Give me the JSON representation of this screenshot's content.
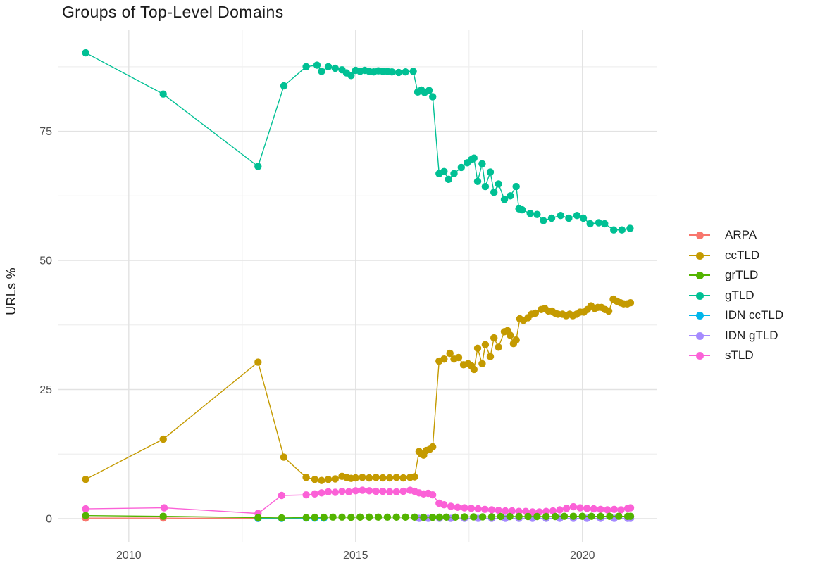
{
  "title": "Groups of Top-Level Domains",
  "axes": {
    "y_label": "URLs %",
    "y_ticks": [
      0,
      25,
      50,
      75
    ],
    "y_minor_ticks": [
      12.5,
      37.5,
      62.5,
      87.5
    ],
    "x_ticks": [
      2010,
      2015,
      2020
    ],
    "x_minor_ticks": [
      2012.5,
      2017.5
    ],
    "grid_major_color": "#e2e2e2",
    "grid_minor_color": "#efefef"
  },
  "legend_order": [
    "ARPA",
    "ccTLD",
    "grTLD",
    "gTLD",
    "IDN ccTLD",
    "IDN gTLD",
    "sTLD"
  ],
  "chart_data": {
    "type": "line",
    "title": "Groups of Top-Level Domains",
    "xlabel": "",
    "ylabel": "URLs %",
    "xlim": [
      2008.45,
      2021.65
    ],
    "ylim": [
      -4.5,
      94.7
    ],
    "grid": true,
    "legend_position": "right",
    "series": [
      {
        "name": "ARPA",
        "color": "#F8766D",
        "points": [
          [
            2009.05,
            0.1
          ],
          [
            2010.76,
            0.1
          ],
          [
            2012.85,
            0.05
          ]
        ]
      },
      {
        "name": "IDN ccTLD",
        "color": "#00B6EB",
        "points": [
          [
            2012.85,
            0.05
          ],
          [
            2013.37,
            0.05
          ],
          [
            2013.91,
            0.1
          ],
          [
            2014.1,
            0.1
          ],
          [
            2014.3,
            0.1
          ]
        ]
      },
      {
        "name": "IDN gTLD",
        "color": "#A58AFF",
        "points": [
          [
            2016.4,
            0.05
          ],
          [
            2016.6,
            0.05
          ],
          [
            2016.85,
            0.05
          ],
          [
            2017.1,
            0.05
          ],
          [
            2017.4,
            0.05
          ],
          [
            2017.7,
            0.05
          ],
          [
            2018.0,
            0.05
          ],
          [
            2018.3,
            0.05
          ],
          [
            2018.6,
            0.05
          ],
          [
            2018.9,
            0.05
          ],
          [
            2019.2,
            0.05
          ],
          [
            2019.5,
            0.05
          ],
          [
            2019.8,
            0.05
          ],
          [
            2020.1,
            0.05
          ],
          [
            2020.4,
            0.05
          ],
          [
            2020.7,
            0.05
          ],
          [
            2021.0,
            0.05
          ],
          [
            2021.06,
            0.05
          ]
        ]
      },
      {
        "name": "ccTLD",
        "color": "#C49A00",
        "points": [
          [
            2009.05,
            7.6
          ],
          [
            2010.76,
            15.4
          ],
          [
            2012.85,
            30.3
          ],
          [
            2013.42,
            11.9
          ],
          [
            2013.91,
            8.0
          ],
          [
            2014.1,
            7.6
          ],
          [
            2014.25,
            7.4
          ],
          [
            2014.4,
            7.6
          ],
          [
            2014.55,
            7.7
          ],
          [
            2014.7,
            8.2
          ],
          [
            2014.8,
            8.0
          ],
          [
            2014.9,
            7.8
          ],
          [
            2015.0,
            7.9
          ],
          [
            2015.15,
            8.0
          ],
          [
            2015.3,
            7.9
          ],
          [
            2015.45,
            8.0
          ],
          [
            2015.6,
            7.9
          ],
          [
            2015.75,
            7.9
          ],
          [
            2015.9,
            8.0
          ],
          [
            2016.05,
            7.9
          ],
          [
            2016.2,
            8.0
          ],
          [
            2016.3,
            8.1
          ],
          [
            2016.4,
            13.0
          ],
          [
            2016.45,
            12.5
          ],
          [
            2016.5,
            12.3
          ],
          [
            2016.56,
            13.2
          ],
          [
            2016.63,
            13.4
          ],
          [
            2016.7,
            13.9
          ],
          [
            2016.84,
            30.5
          ],
          [
            2016.95,
            30.9
          ],
          [
            2017.08,
            32.0
          ],
          [
            2017.17,
            30.9
          ],
          [
            2017.27,
            31.2
          ],
          [
            2017.38,
            29.8
          ],
          [
            2017.48,
            30.0
          ],
          [
            2017.55,
            29.6
          ],
          [
            2017.61,
            28.9
          ],
          [
            2017.69,
            33.0
          ],
          [
            2017.79,
            30.0
          ],
          [
            2017.86,
            33.7
          ],
          [
            2017.97,
            31.4
          ],
          [
            2018.05,
            35.0
          ],
          [
            2018.15,
            33.2
          ],
          [
            2018.28,
            36.2
          ],
          [
            2018.35,
            36.4
          ],
          [
            2018.41,
            35.5
          ],
          [
            2018.48,
            33.9
          ],
          [
            2018.54,
            34.6
          ],
          [
            2018.62,
            38.7
          ],
          [
            2018.7,
            38.4
          ],
          [
            2018.8,
            38.9
          ],
          [
            2018.88,
            39.6
          ],
          [
            2018.96,
            39.8
          ],
          [
            2019.09,
            40.5
          ],
          [
            2019.17,
            40.7
          ],
          [
            2019.25,
            40.2
          ],
          [
            2019.33,
            40.2
          ],
          [
            2019.4,
            39.8
          ],
          [
            2019.46,
            39.6
          ],
          [
            2019.56,
            39.6
          ],
          [
            2019.64,
            39.3
          ],
          [
            2019.72,
            39.6
          ],
          [
            2019.79,
            39.3
          ],
          [
            2019.87,
            39.6
          ],
          [
            2019.95,
            40.0
          ],
          [
            2020.03,
            40.0
          ],
          [
            2020.11,
            40.5
          ],
          [
            2020.19,
            41.2
          ],
          [
            2020.27,
            40.7
          ],
          [
            2020.34,
            40.9
          ],
          [
            2020.42,
            40.9
          ],
          [
            2020.5,
            40.5
          ],
          [
            2020.58,
            40.2
          ],
          [
            2020.68,
            42.5
          ],
          [
            2020.76,
            42.1
          ],
          [
            2020.84,
            41.8
          ],
          [
            2020.91,
            41.6
          ],
          [
            2020.99,
            41.6
          ],
          [
            2021.06,
            41.8
          ]
        ]
      },
      {
        "name": "sTLD",
        "color": "#FB61D7",
        "points": [
          [
            2009.05,
            1.9
          ],
          [
            2010.78,
            2.1
          ],
          [
            2012.85,
            1.0
          ],
          [
            2013.37,
            4.5
          ],
          [
            2013.91,
            4.6
          ],
          [
            2014.1,
            4.8
          ],
          [
            2014.25,
            5.0
          ],
          [
            2014.4,
            5.2
          ],
          [
            2014.55,
            5.1
          ],
          [
            2014.7,
            5.3
          ],
          [
            2014.85,
            5.2
          ],
          [
            2015.0,
            5.4
          ],
          [
            2015.15,
            5.5
          ],
          [
            2015.3,
            5.4
          ],
          [
            2015.45,
            5.3
          ],
          [
            2015.6,
            5.3
          ],
          [
            2015.75,
            5.2
          ],
          [
            2015.9,
            5.2
          ],
          [
            2016.05,
            5.3
          ],
          [
            2016.2,
            5.5
          ],
          [
            2016.3,
            5.3
          ],
          [
            2016.4,
            5.0
          ],
          [
            2016.5,
            4.8
          ],
          [
            2016.6,
            4.9
          ],
          [
            2016.7,
            4.6
          ],
          [
            2016.84,
            3.0
          ],
          [
            2016.95,
            2.7
          ],
          [
            2017.1,
            2.4
          ],
          [
            2017.25,
            2.2
          ],
          [
            2017.4,
            2.1
          ],
          [
            2017.55,
            2.0
          ],
          [
            2017.7,
            1.9
          ],
          [
            2017.85,
            1.8
          ],
          [
            2018.0,
            1.7
          ],
          [
            2018.15,
            1.6
          ],
          [
            2018.3,
            1.5
          ],
          [
            2018.45,
            1.5
          ],
          [
            2018.6,
            1.4
          ],
          [
            2018.75,
            1.4
          ],
          [
            2018.9,
            1.3
          ],
          [
            2019.05,
            1.3
          ],
          [
            2019.2,
            1.4
          ],
          [
            2019.35,
            1.5
          ],
          [
            2019.5,
            1.7
          ],
          [
            2019.65,
            2.0
          ],
          [
            2019.8,
            2.3
          ],
          [
            2019.95,
            2.1
          ],
          [
            2020.1,
            2.0
          ],
          [
            2020.25,
            1.9
          ],
          [
            2020.4,
            1.8
          ],
          [
            2020.55,
            1.7
          ],
          [
            2020.7,
            1.8
          ],
          [
            2020.85,
            1.7
          ],
          [
            2021.0,
            2.0
          ],
          [
            2021.06,
            2.1
          ]
        ]
      },
      {
        "name": "grTLD",
        "color": "#53B400",
        "points": [
          [
            2009.05,
            0.6
          ],
          [
            2010.76,
            0.45
          ],
          [
            2012.85,
            0.2
          ],
          [
            2013.37,
            0.15
          ],
          [
            2013.91,
            0.2
          ],
          [
            2014.1,
            0.25
          ],
          [
            2014.3,
            0.25
          ],
          [
            2014.5,
            0.3
          ],
          [
            2014.7,
            0.3
          ],
          [
            2014.9,
            0.25
          ],
          [
            2015.1,
            0.3
          ],
          [
            2015.3,
            0.3
          ],
          [
            2015.5,
            0.3
          ],
          [
            2015.7,
            0.3
          ],
          [
            2015.9,
            0.3
          ],
          [
            2016.1,
            0.3
          ],
          [
            2016.3,
            0.3
          ],
          [
            2016.5,
            0.25
          ],
          [
            2016.7,
            0.25
          ],
          [
            2016.85,
            0.3
          ],
          [
            2017.0,
            0.3
          ],
          [
            2017.2,
            0.3
          ],
          [
            2017.4,
            0.35
          ],
          [
            2017.6,
            0.35
          ],
          [
            2017.8,
            0.35
          ],
          [
            2018.0,
            0.35
          ],
          [
            2018.2,
            0.4
          ],
          [
            2018.4,
            0.4
          ],
          [
            2018.6,
            0.4
          ],
          [
            2018.8,
            0.4
          ],
          [
            2019.0,
            0.4
          ],
          [
            2019.2,
            0.4
          ],
          [
            2019.4,
            0.4
          ],
          [
            2019.6,
            0.45
          ],
          [
            2019.8,
            0.45
          ],
          [
            2020.0,
            0.45
          ],
          [
            2020.2,
            0.45
          ],
          [
            2020.4,
            0.45
          ],
          [
            2020.6,
            0.45
          ],
          [
            2020.8,
            0.45
          ],
          [
            2021.0,
            0.45
          ],
          [
            2021.06,
            0.45
          ]
        ]
      },
      {
        "name": "gTLD",
        "color": "#00C094",
        "points": [
          [
            2009.05,
            90.2
          ],
          [
            2010.76,
            82.2
          ],
          [
            2012.85,
            68.2
          ],
          [
            2013.42,
            83.8
          ],
          [
            2013.91,
            87.5
          ],
          [
            2014.15,
            87.8
          ],
          [
            2014.25,
            86.6
          ],
          [
            2014.4,
            87.5
          ],
          [
            2014.55,
            87.2
          ],
          [
            2014.7,
            86.9
          ],
          [
            2014.8,
            86.3
          ],
          [
            2014.9,
            85.8
          ],
          [
            2015.0,
            86.8
          ],
          [
            2015.1,
            86.6
          ],
          [
            2015.2,
            86.8
          ],
          [
            2015.3,
            86.6
          ],
          [
            2015.4,
            86.5
          ],
          [
            2015.5,
            86.7
          ],
          [
            2015.6,
            86.6
          ],
          [
            2015.7,
            86.6
          ],
          [
            2015.8,
            86.5
          ],
          [
            2015.95,
            86.4
          ],
          [
            2016.1,
            86.5
          ],
          [
            2016.27,
            86.6
          ],
          [
            2016.37,
            82.6
          ],
          [
            2016.45,
            83.0
          ],
          [
            2016.52,
            82.5
          ],
          [
            2016.62,
            82.9
          ],
          [
            2016.7,
            81.7
          ],
          [
            2016.84,
            66.8
          ],
          [
            2016.95,
            67.2
          ],
          [
            2017.05,
            65.7
          ],
          [
            2017.17,
            66.8
          ],
          [
            2017.33,
            68.0
          ],
          [
            2017.46,
            68.9
          ],
          [
            2017.55,
            69.5
          ],
          [
            2017.61,
            69.8
          ],
          [
            2017.69,
            65.3
          ],
          [
            2017.79,
            68.7
          ],
          [
            2017.86,
            64.3
          ],
          [
            2017.97,
            67.1
          ],
          [
            2018.05,
            63.2
          ],
          [
            2018.15,
            64.8
          ],
          [
            2018.28,
            61.8
          ],
          [
            2018.41,
            62.5
          ],
          [
            2018.54,
            64.3
          ],
          [
            2018.6,
            60.0
          ],
          [
            2018.67,
            59.8
          ],
          [
            2018.85,
            59.1
          ],
          [
            2019.0,
            58.9
          ],
          [
            2019.14,
            57.7
          ],
          [
            2019.32,
            58.2
          ],
          [
            2019.52,
            58.7
          ],
          [
            2019.7,
            58.2
          ],
          [
            2019.88,
            58.7
          ],
          [
            2020.02,
            58.2
          ],
          [
            2020.17,
            57.1
          ],
          [
            2020.36,
            57.3
          ],
          [
            2020.49,
            57.1
          ],
          [
            2020.69,
            55.9
          ],
          [
            2020.87,
            55.9
          ],
          [
            2021.05,
            56.2
          ]
        ]
      }
    ]
  }
}
